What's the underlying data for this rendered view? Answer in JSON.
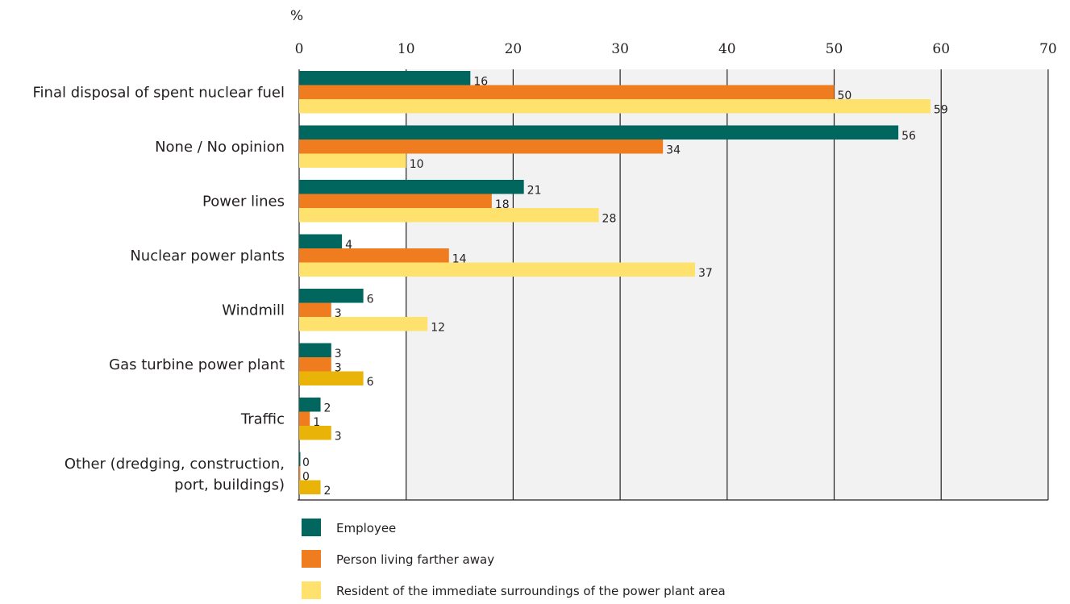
{
  "chart_data": {
    "type": "bar",
    "orientation": "horizontal",
    "unit_label": "%",
    "xlim": [
      0,
      70
    ],
    "x_ticks": [
      0,
      10,
      20,
      30,
      40,
      50,
      60,
      70
    ],
    "grid": true,
    "legend_position": "bottom",
    "categories": [
      [
        "Final disposal of spent nuclear fuel"
      ],
      [
        "None / No opinion"
      ],
      [
        "Power lines"
      ],
      [
        "Nuclear power plants"
      ],
      [
        "Windmill"
      ],
      [
        "Gas turbine power plant"
      ],
      [
        "Traffic"
      ],
      [
        "Other (dredging, construction,",
        "port, buildings)"
      ]
    ],
    "series": [
      {
        "name": "Employee",
        "color": "#00665e",
        "values": [
          16,
          56,
          21,
          4,
          6,
          3,
          2,
          0
        ]
      },
      {
        "name": "Person living farther away",
        "color": "#ef7d1f",
        "values": [
          50,
          34,
          18,
          14,
          3,
          3,
          1,
          0
        ]
      },
      {
        "name": "Resident of the immediate surroundings of the power plant area",
        "color": "#ffe16e",
        "values": [
          59,
          10,
          28,
          37,
          12,
          6,
          3,
          2
        ]
      }
    ],
    "alt_bar_color": "#eab308"
  }
}
